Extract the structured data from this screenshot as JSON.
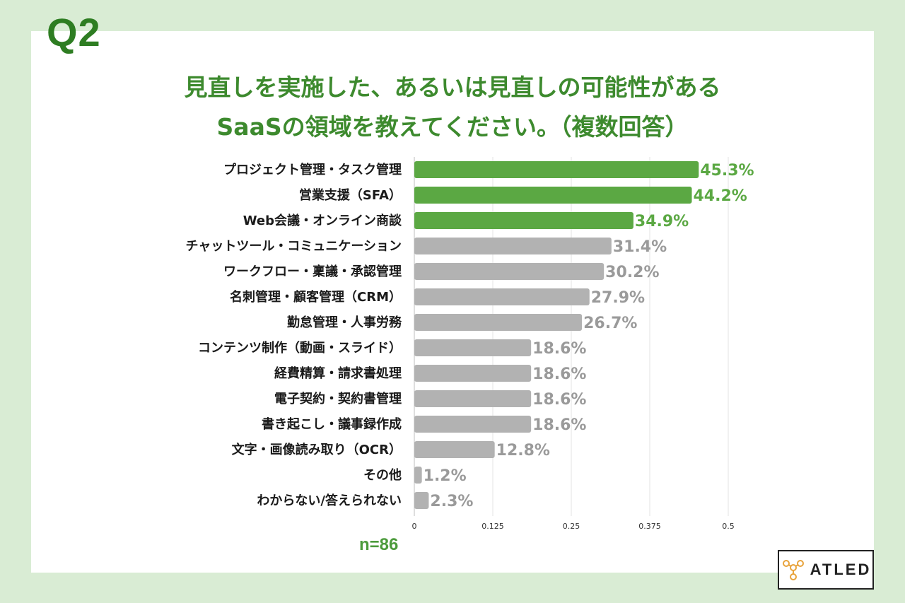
{
  "question_label": "Q2",
  "title_line1": "見直しを実施した、あるいは見直しの可能性がある",
  "title_line2": "SaaSの領域を教えてください。（複数回答）",
  "sample_size": "n=86",
  "logo_text": "ATLED",
  "colors": {
    "highlight": "#5ba843",
    "highlight_text": "#5ba843",
    "default": "#b2b2b2",
    "default_text": "#9a9a9a",
    "title": "#3d8a2e"
  },
  "chart_data": {
    "type": "bar",
    "orientation": "horizontal",
    "title": "見直しを実施した、あるいは見直しの可能性がある SaaSの領域を教えてください。（複数回答）",
    "categories": [
      "プロジェクト管理・タスク管理",
      "営業支援（SFA）",
      "Web会議・オンライン商談",
      "チャットツール・コミュニケーション",
      "ワークフロー・稟議・承認管理",
      "名刺管理・顧客管理（CRM）",
      "勤怠管理・人事労務",
      "コンテンツ制作（動画・スライド）",
      "経費精算・請求書処理",
      "電子契約・契約書管理",
      "書き起こし・議事録作成",
      "文字・画像読み取り（OCR）",
      "その他",
      "わからない/答えられない"
    ],
    "values": [
      0.453,
      0.442,
      0.349,
      0.314,
      0.302,
      0.279,
      0.267,
      0.186,
      0.186,
      0.186,
      0.186,
      0.128,
      0.012,
      0.023
    ],
    "value_labels": [
      "45.3%",
      "44.2%",
      "34.9%",
      "31.4%",
      "30.2%",
      "27.9%",
      "26.7%",
      "18.6%",
      "18.6%",
      "18.6%",
      "18.6%",
      "12.8%",
      "1.2%",
      "2.3%"
    ],
    "highlighted": [
      true,
      true,
      true,
      false,
      false,
      false,
      false,
      false,
      false,
      false,
      false,
      false,
      false,
      false
    ],
    "xlim": [
      0,
      0.5
    ],
    "xticks": [
      0,
      0.125,
      0.25,
      0.375,
      0.5
    ],
    "xtick_labels": [
      "0",
      "0.125",
      "0.25",
      "0.375",
      "0.5"
    ],
    "grid": true,
    "legend": "none"
  }
}
